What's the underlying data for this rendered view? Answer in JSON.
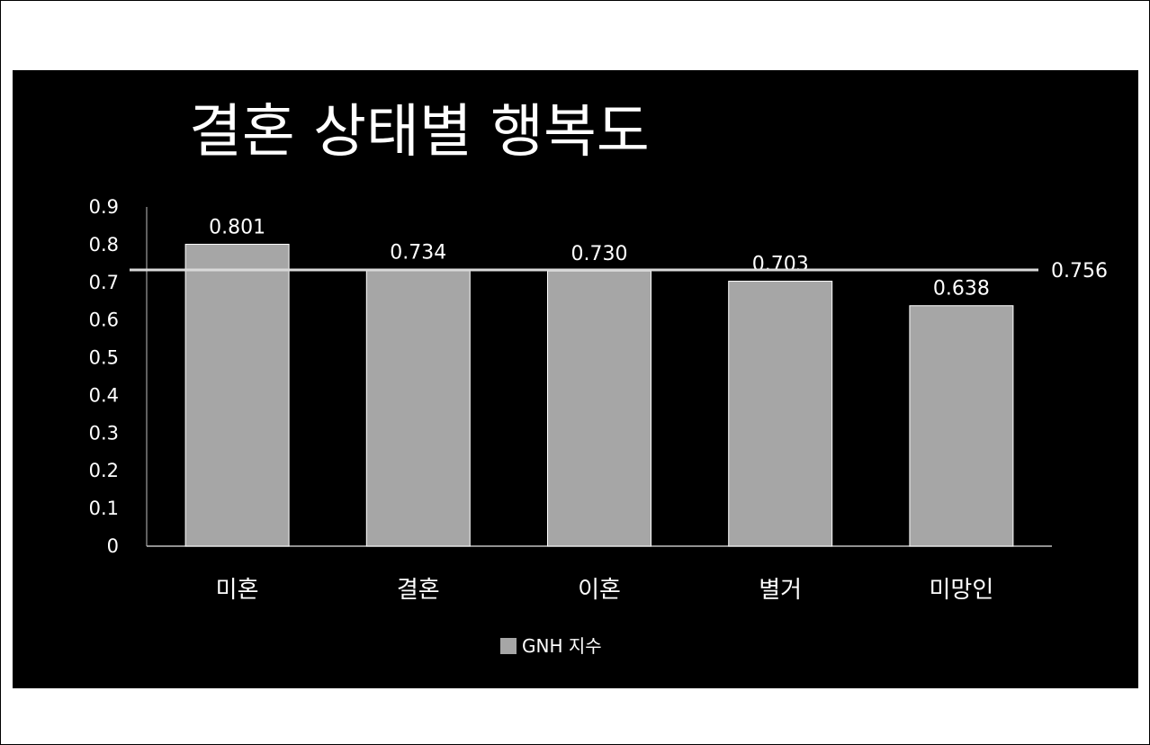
{
  "chart_data": {
    "type": "bar",
    "title": "결혼 상태별 행복도",
    "categories": [
      "미혼",
      "결혼",
      "이혼",
      "별거",
      "미망인"
    ],
    "series": [
      {
        "name": "GNH 지수",
        "values": [
          0.801,
          0.734,
          0.73,
          0.703,
          0.638
        ],
        "labels": [
          "0.801",
          "0.734",
          "0.730",
          "0.703",
          "0.638"
        ]
      }
    ],
    "reference_line": {
      "value": 0.756,
      "label": "0.756"
    },
    "ylim": [
      0,
      0.9
    ],
    "yticks": [
      "0",
      "0.1",
      "0.2",
      "0.3",
      "0.4",
      "0.5",
      "0.6",
      "0.7",
      "0.8",
      "0.9"
    ],
    "grid": false,
    "legend": "bottom",
    "colors": {
      "bar": "#a6a6a6",
      "background": "#000000",
      "text": "#ffffff",
      "line": "#d9d9d9"
    }
  }
}
